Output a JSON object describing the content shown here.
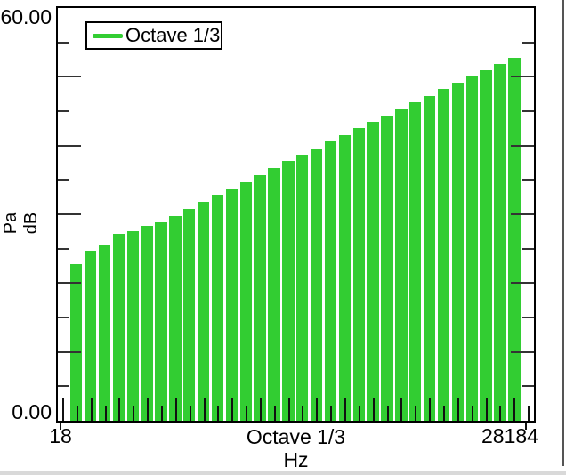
{
  "chart_data": {
    "type": "bar",
    "title": "",
    "legend": [
      {
        "label": "Octave 1/3",
        "color": "#32CD32"
      }
    ],
    "y_axis": {
      "label_lines": [
        "Pa",
        "dB"
      ],
      "min": 0,
      "max": 60,
      "min_label": "0.00",
      "max_label": "60.00",
      "minor_tick_step_db": 5,
      "major_tick_step_db": 10,
      "grid": false
    },
    "x_axis": {
      "title": "Octave 1/3",
      "unit": "Hz",
      "first_tick_label": "18",
      "last_tick_label": "28184",
      "scale": "log_third_octave_bands",
      "num_ticks": 34
    },
    "bars": {
      "count": 32,
      "color": "#32CD32",
      "values_db": [
        22.8,
        24.7,
        25.6,
        27.2,
        27.6,
        28.3,
        28.8,
        29.8,
        30.8,
        31.8,
        32.8,
        33.7,
        34.7,
        35.7,
        36.7,
        37.7,
        38.7,
        39.6,
        40.6,
        41.5,
        42.5,
        43.4,
        44.4,
        45.3,
        46.3,
        47.2,
        48.2,
        49.1,
        50.1,
        51.0,
        51.9,
        52.8
      ]
    }
  }
}
